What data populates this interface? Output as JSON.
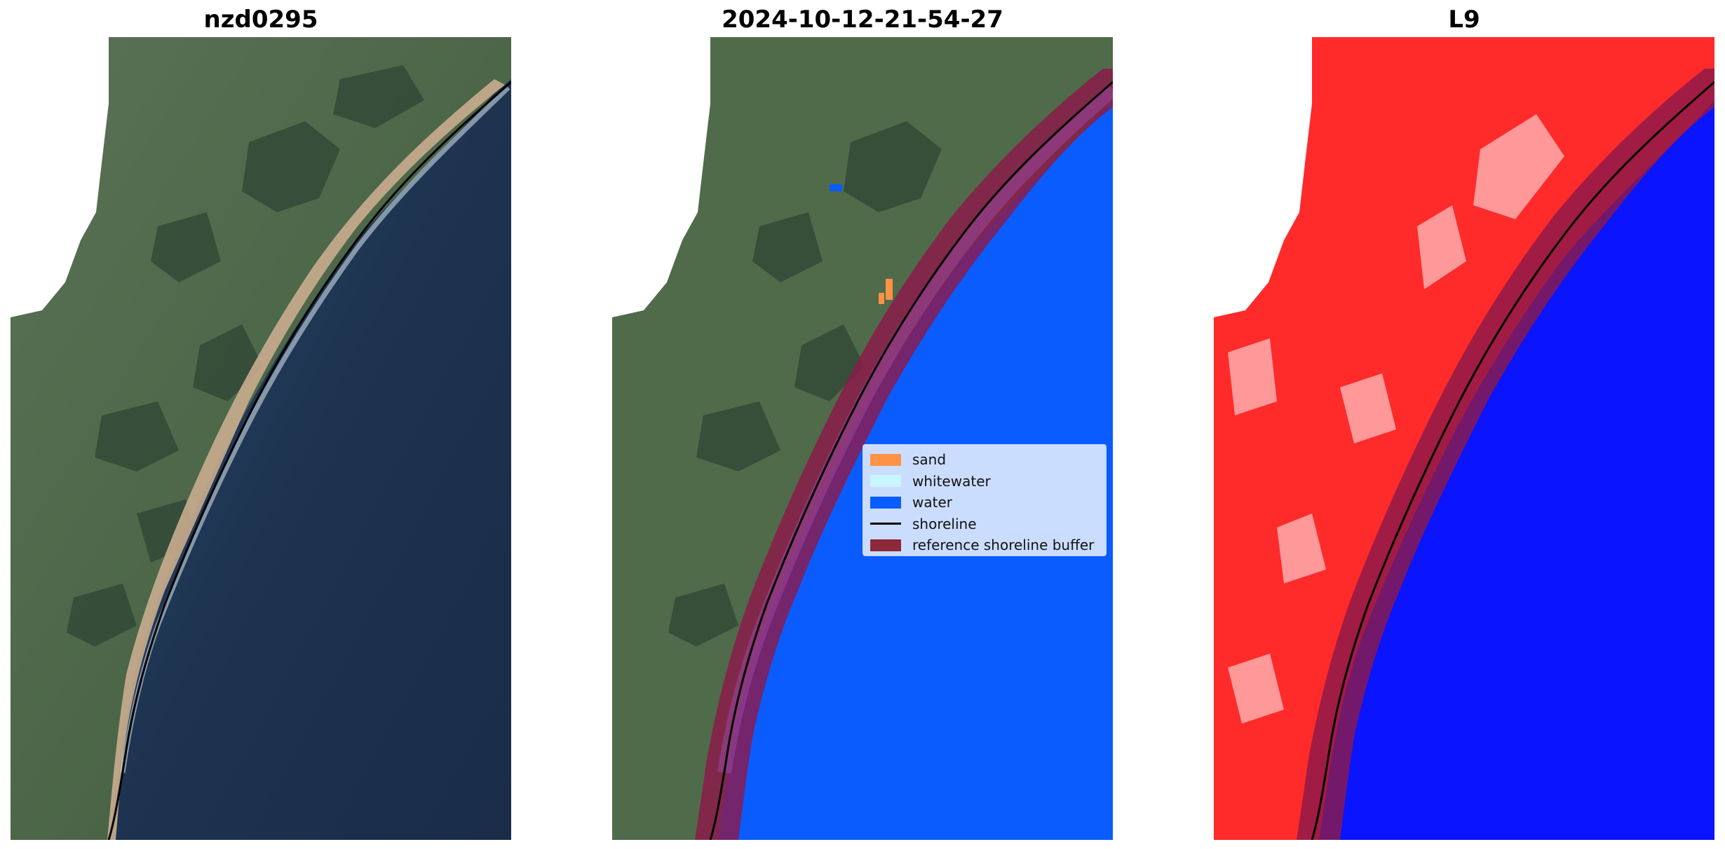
{
  "panels": [
    {
      "title": "nzd0295",
      "view": "rgb"
    },
    {
      "title": "2024-10-12-21-54-27",
      "view": "classified"
    },
    {
      "title": "L9",
      "view": "index"
    }
  ],
  "legend": {
    "items": [
      {
        "label": "sand",
        "color": "#ff9244",
        "kind": "patch"
      },
      {
        "label": "whitewater",
        "color": "#c8f6ff",
        "kind": "patch"
      },
      {
        "label": "water",
        "color": "#0a5cff",
        "kind": "patch"
      },
      {
        "label": "shoreline",
        "color": "#000000",
        "kind": "line"
      },
      {
        "label": "reference shoreline buffer",
        "color": "#8c2838",
        "kind": "patch"
      }
    ]
  },
  "colors": {
    "land": "#4f6b4a",
    "ocean": "#1d3350",
    "beach": "#c9ad8e",
    "classified_water": "#0a5cff",
    "buffer": "#8c1a4a",
    "index_land": "#ff2a2a",
    "index_water": "#0a14ff"
  }
}
